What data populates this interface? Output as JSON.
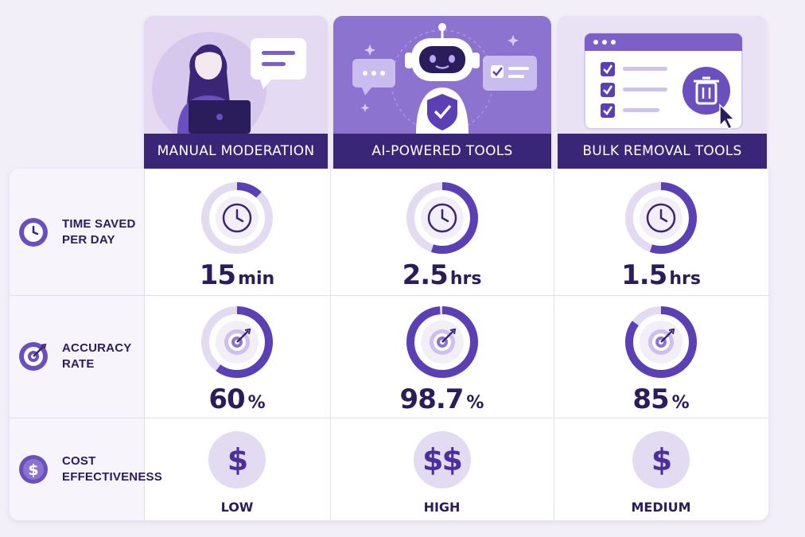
{
  "columns": [
    {
      "title": "MANUAL MODERATION",
      "illustration": "woman-laptop-illustration"
    },
    {
      "title": "AI-POWERED TOOLS",
      "illustration": "robot-shield-illustration"
    },
    {
      "title": "BULK REMOVAL TOOLS",
      "illustration": "checklist-trash-illustration"
    }
  ],
  "rows": [
    {
      "label": "TIME SAVED\nPER DAY",
      "icon": "clock-icon"
    },
    {
      "label": "ACCURACY\nRATE",
      "icon": "target-icon"
    },
    {
      "label": "COST\nEFFECTIVENESS",
      "icon": "dollar-icon"
    }
  ],
  "time_saved": [
    {
      "value": "15",
      "unit": "min",
      "fraction": 0.12
    },
    {
      "value": "2.5",
      "unit": "hrs",
      "fraction": 0.55
    },
    {
      "value": "1.5",
      "unit": "hrs",
      "fraction": 0.55
    }
  ],
  "accuracy": [
    {
      "value": "60",
      "unit": "%",
      "fraction": 0.6
    },
    {
      "value": "98.7",
      "unit": "%",
      "fraction": 0.987
    },
    {
      "value": "85",
      "unit": "%",
      "fraction": 0.85
    }
  ],
  "cost": [
    {
      "symbol": "$",
      "label": "LOW"
    },
    {
      "symbol": "$$",
      "label": "HIGH"
    },
    {
      "symbol": "$",
      "label": "MEDIUM"
    }
  ],
  "colors": {
    "accent": "#5b3fb5",
    "dark": "#3a2677",
    "track": "#e3dbf2",
    "text": "#2b1d5c"
  }
}
